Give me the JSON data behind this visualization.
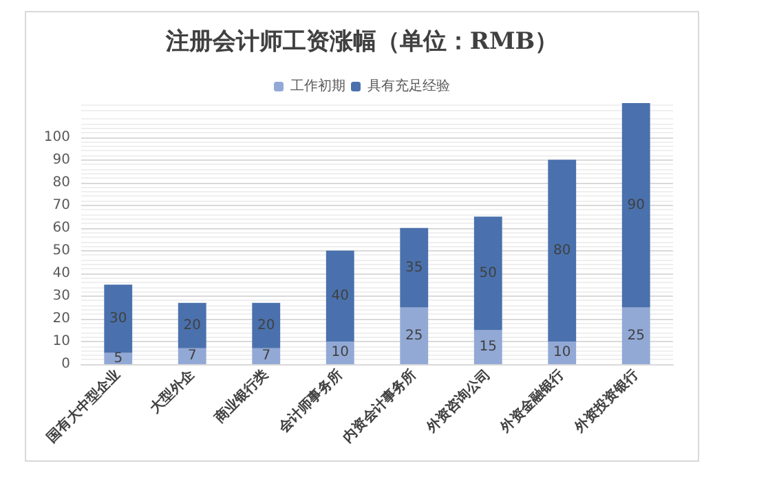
{
  "chart_data": {
    "type": "bar",
    "title": "注册会计师工资涨幅（单位：RMB）",
    "categories": [
      "国有大中型企业",
      "大型外企",
      "商业银行类",
      "会计师事务所",
      "内资会计事务所",
      "外资咨询公司",
      "外资金融银行",
      "外资投资银行"
    ],
    "series": [
      {
        "name": "工作初期",
        "color": "#92a9d6",
        "values": [
          5,
          7,
          7,
          10,
          25,
          15,
          10,
          25
        ]
      },
      {
        "name": "具有充足经验",
        "color": "#4a71ad",
        "values": [
          30,
          20,
          20,
          40,
          35,
          50,
          80,
          90
        ]
      }
    ],
    "stacked": true,
    "data_labels": true,
    "ylim": [
      0,
      115
    ],
    "yticks": [
      0,
      10,
      20,
      30,
      40,
      50,
      60,
      70,
      80,
      90,
      100
    ],
    "grid": "y",
    "legend": "top"
  }
}
